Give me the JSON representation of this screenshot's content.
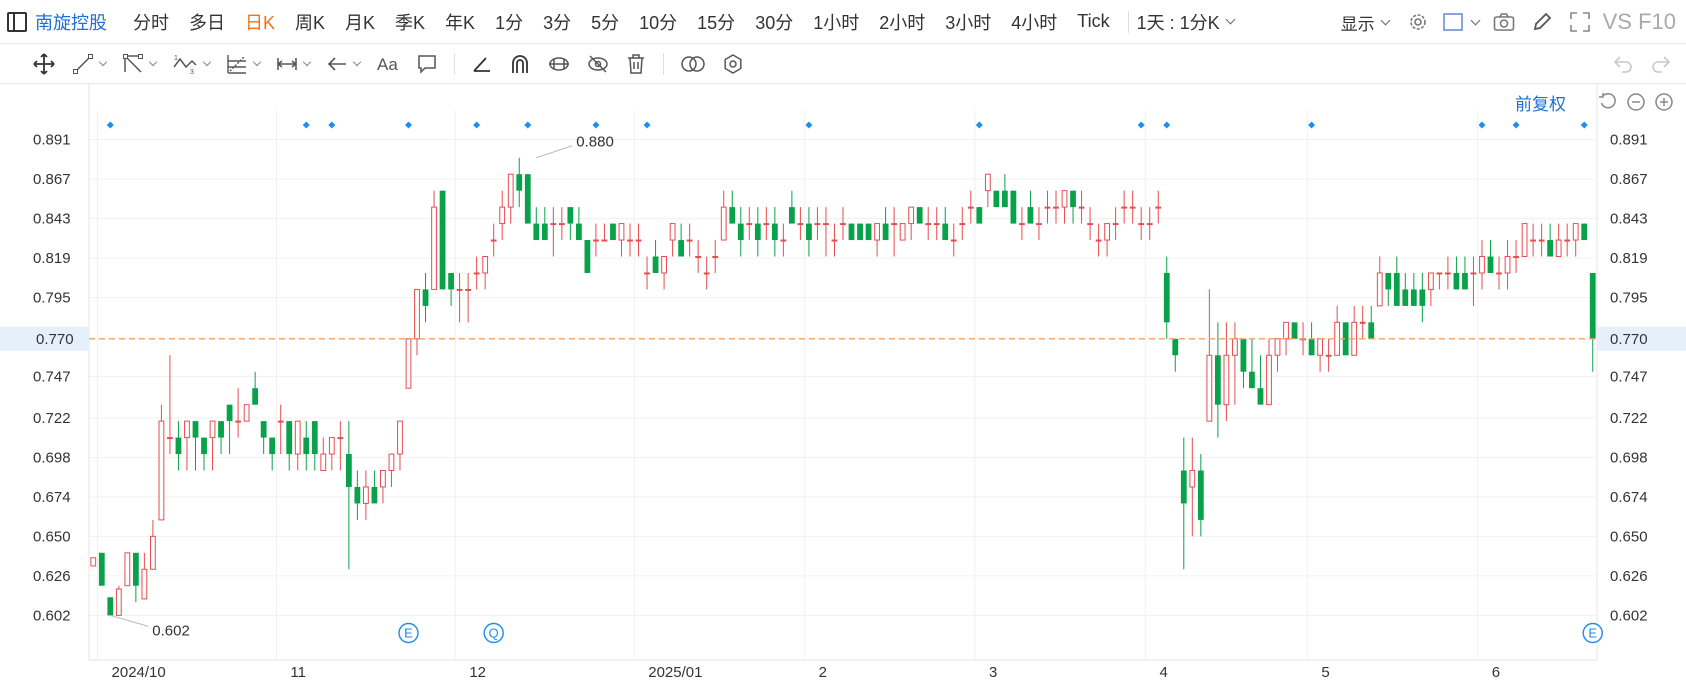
{
  "toolbar": {
    "stock_name": "南旋控股",
    "periods": [
      "分时",
      "多日",
      "日K",
      "周K",
      "月K",
      "季K",
      "年K",
      "1分",
      "3分",
      "5分",
      "10分",
      "15分",
      "30分",
      "1小时",
      "2小时",
      "3小时",
      "4小时",
      "Tick"
    ],
    "active_period": "日K",
    "range_label": "1天 : 1分K",
    "display_label": "显示",
    "brand": "VS F10"
  },
  "chart_header": {
    "adjust_label": "前复权"
  },
  "colors": {
    "up": "#e84c4f",
    "down": "#09a24a",
    "accent": "#1e6fd9",
    "last_price_line": "#f4a35a",
    "active_period": "#f4701a"
  },
  "chart_data": {
    "type": "candlestick",
    "y_ticks": [
      0.891,
      0.867,
      0.843,
      0.819,
      0.795,
      0.77,
      0.747,
      0.722,
      0.698,
      0.674,
      0.65,
      0.626,
      0.602
    ],
    "ylim": [
      0.584,
      0.909
    ],
    "x_labels": [
      "2024/10",
      "11",
      "12",
      "2025/01",
      "2",
      "3",
      "4",
      "5",
      "6"
    ],
    "x_label_index": [
      1,
      22,
      43,
      64,
      84,
      104,
      124,
      143,
      163
    ],
    "last_price": 0.77,
    "annotations": [
      {
        "text": "0.880",
        "index": 52,
        "price": 0.88
      },
      {
        "text": "0.602",
        "index": 2,
        "price": 0.602
      }
    ],
    "event_markers": [
      {
        "label": "E",
        "index": 37
      },
      {
        "label": "Q",
        "index": 47
      },
      {
        "label": "E",
        "index": 176
      }
    ],
    "dividend_marker_index": [
      2,
      25,
      28,
      37,
      45,
      51,
      59,
      65,
      84,
      104,
      123,
      126,
      143,
      163,
      167,
      175
    ],
    "candles": [
      [
        0.632,
        0.637,
        0.633,
        0.637
      ],
      [
        0.64,
        0.64,
        0.62,
        0.62
      ],
      [
        0.613,
        0.613,
        0.602,
        0.602
      ],
      [
        0.602,
        0.62,
        0.602,
        0.618
      ],
      [
        0.62,
        0.64,
        0.62,
        0.64
      ],
      [
        0.64,
        0.64,
        0.61,
        0.62
      ],
      [
        0.612,
        0.64,
        0.612,
        0.63
      ],
      [
        0.63,
        0.66,
        0.63,
        0.65
      ],
      [
        0.66,
        0.73,
        0.66,
        0.72
      ],
      [
        0.71,
        0.76,
        0.7,
        0.71
      ],
      [
        0.71,
        0.72,
        0.69,
        0.7
      ],
      [
        0.71,
        0.72,
        0.69,
        0.72
      ],
      [
        0.72,
        0.72,
        0.69,
        0.71
      ],
      [
        0.71,
        0.71,
        0.69,
        0.7
      ],
      [
        0.71,
        0.72,
        0.69,
        0.72
      ],
      [
        0.72,
        0.72,
        0.7,
        0.71
      ],
      [
        0.73,
        0.73,
        0.7,
        0.72
      ],
      [
        0.72,
        0.74,
        0.71,
        0.72
      ],
      [
        0.72,
        0.73,
        0.72,
        0.73
      ],
      [
        0.74,
        0.75,
        0.73,
        0.73
      ],
      [
        0.72,
        0.72,
        0.7,
        0.71
      ],
      [
        0.71,
        0.71,
        0.69,
        0.7
      ],
      [
        0.72,
        0.73,
        0.7,
        0.72
      ],
      [
        0.72,
        0.72,
        0.69,
        0.7
      ],
      [
        0.7,
        0.72,
        0.69,
        0.72
      ],
      [
        0.71,
        0.72,
        0.69,
        0.7
      ],
      [
        0.72,
        0.72,
        0.69,
        0.7
      ],
      [
        0.69,
        0.71,
        0.69,
        0.7
      ],
      [
        0.7,
        0.71,
        0.69,
        0.71
      ],
      [
        0.71,
        0.72,
        0.69,
        0.71
      ],
      [
        0.7,
        0.72,
        0.63,
        0.68
      ],
      [
        0.68,
        0.69,
        0.66,
        0.67
      ],
      [
        0.67,
        0.69,
        0.66,
        0.68
      ],
      [
        0.68,
        0.69,
        0.67,
        0.67
      ],
      [
        0.68,
        0.69,
        0.67,
        0.69
      ],
      [
        0.69,
        0.7,
        0.68,
        0.7
      ],
      [
        0.7,
        0.72,
        0.69,
        0.72
      ],
      [
        0.74,
        0.77,
        0.74,
        0.77
      ],
      [
        0.77,
        0.8,
        0.76,
        0.8
      ],
      [
        0.8,
        0.81,
        0.78,
        0.79
      ],
      [
        0.8,
        0.86,
        0.8,
        0.85
      ],
      [
        0.86,
        0.86,
        0.8,
        0.8
      ],
      [
        0.81,
        0.81,
        0.79,
        0.8
      ],
      [
        0.8,
        0.81,
        0.78,
        0.8
      ],
      [
        0.8,
        0.81,
        0.78,
        0.8
      ],
      [
        0.81,
        0.82,
        0.8,
        0.81
      ],
      [
        0.81,
        0.82,
        0.8,
        0.82
      ],
      [
        0.83,
        0.84,
        0.82,
        0.83
      ],
      [
        0.84,
        0.86,
        0.83,
        0.85
      ],
      [
        0.85,
        0.87,
        0.84,
        0.87
      ],
      [
        0.87,
        0.88,
        0.85,
        0.86
      ],
      [
        0.87,
        0.87,
        0.84,
        0.84
      ],
      [
        0.84,
        0.85,
        0.83,
        0.83
      ],
      [
        0.84,
        0.85,
        0.83,
        0.83
      ],
      [
        0.84,
        0.85,
        0.82,
        0.84
      ],
      [
        0.84,
        0.85,
        0.83,
        0.84
      ],
      [
        0.85,
        0.85,
        0.83,
        0.84
      ],
      [
        0.84,
        0.85,
        0.83,
        0.83
      ],
      [
        0.83,
        0.83,
        0.81,
        0.81
      ],
      [
        0.83,
        0.84,
        0.82,
        0.83
      ],
      [
        0.83,
        0.84,
        0.83,
        0.83
      ],
      [
        0.84,
        0.84,
        0.83,
        0.83
      ],
      [
        0.83,
        0.84,
        0.82,
        0.84
      ],
      [
        0.83,
        0.84,
        0.82,
        0.83
      ],
      [
        0.83,
        0.84,
        0.82,
        0.83
      ],
      [
        0.81,
        0.82,
        0.8,
        0.81
      ],
      [
        0.82,
        0.83,
        0.81,
        0.81
      ],
      [
        0.81,
        0.82,
        0.8,
        0.82
      ],
      [
        0.83,
        0.84,
        0.82,
        0.84
      ],
      [
        0.83,
        0.84,
        0.82,
        0.82
      ],
      [
        0.83,
        0.84,
        0.82,
        0.83
      ],
      [
        0.82,
        0.83,
        0.81,
        0.82
      ],
      [
        0.81,
        0.82,
        0.8,
        0.81
      ],
      [
        0.82,
        0.83,
        0.81,
        0.82
      ],
      [
        0.83,
        0.86,
        0.83,
        0.85
      ],
      [
        0.85,
        0.86,
        0.84,
        0.84
      ],
      [
        0.84,
        0.85,
        0.82,
        0.83
      ],
      [
        0.84,
        0.85,
        0.83,
        0.84
      ],
      [
        0.84,
        0.85,
        0.82,
        0.83
      ],
      [
        0.84,
        0.85,
        0.83,
        0.84
      ],
      [
        0.84,
        0.85,
        0.82,
        0.83
      ],
      [
        0.83,
        0.84,
        0.82,
        0.83
      ],
      [
        0.85,
        0.86,
        0.84,
        0.84
      ],
      [
        0.84,
        0.85,
        0.83,
        0.84
      ],
      [
        0.84,
        0.85,
        0.82,
        0.83
      ],
      [
        0.84,
        0.85,
        0.83,
        0.84
      ],
      [
        0.84,
        0.85,
        0.82,
        0.84
      ],
      [
        0.83,
        0.84,
        0.82,
        0.83
      ],
      [
        0.84,
        0.85,
        0.83,
        0.84
      ],
      [
        0.84,
        0.84,
        0.83,
        0.83
      ],
      [
        0.84,
        0.84,
        0.83,
        0.83
      ],
      [
        0.84,
        0.84,
        0.83,
        0.83
      ],
      [
        0.83,
        0.84,
        0.82,
        0.84
      ],
      [
        0.84,
        0.85,
        0.83,
        0.83
      ],
      [
        0.84,
        0.85,
        0.82,
        0.84
      ],
      [
        0.83,
        0.84,
        0.83,
        0.84
      ],
      [
        0.84,
        0.85,
        0.83,
        0.85
      ],
      [
        0.85,
        0.85,
        0.84,
        0.84
      ],
      [
        0.84,
        0.85,
        0.83,
        0.84
      ],
      [
        0.84,
        0.85,
        0.83,
        0.84
      ],
      [
        0.84,
        0.85,
        0.83,
        0.83
      ],
      [
        0.83,
        0.84,
        0.82,
        0.83
      ],
      [
        0.84,
        0.85,
        0.83,
        0.84
      ],
      [
        0.85,
        0.86,
        0.84,
        0.85
      ],
      [
        0.85,
        0.85,
        0.84,
        0.84
      ],
      [
        0.86,
        0.87,
        0.85,
        0.87
      ],
      [
        0.86,
        0.86,
        0.85,
        0.85
      ],
      [
        0.86,
        0.87,
        0.85,
        0.85
      ],
      [
        0.86,
        0.86,
        0.84,
        0.84
      ],
      [
        0.84,
        0.85,
        0.83,
        0.84
      ],
      [
        0.85,
        0.86,
        0.84,
        0.84
      ],
      [
        0.84,
        0.85,
        0.83,
        0.84
      ],
      [
        0.85,
        0.86,
        0.84,
        0.85
      ],
      [
        0.85,
        0.86,
        0.84,
        0.85
      ],
      [
        0.85,
        0.86,
        0.84,
        0.86
      ],
      [
        0.86,
        0.86,
        0.84,
        0.85
      ],
      [
        0.85,
        0.86,
        0.84,
        0.85
      ],
      [
        0.84,
        0.85,
        0.83,
        0.84
      ],
      [
        0.83,
        0.84,
        0.82,
        0.83
      ],
      [
        0.83,
        0.84,
        0.82,
        0.84
      ],
      [
        0.84,
        0.85,
        0.83,
        0.84
      ],
      [
        0.85,
        0.86,
        0.84,
        0.85
      ],
      [
        0.85,
        0.86,
        0.84,
        0.85
      ],
      [
        0.84,
        0.85,
        0.83,
        0.84
      ],
      [
        0.84,
        0.85,
        0.83,
        0.84
      ],
      [
        0.85,
        0.86,
        0.84,
        0.85
      ],
      [
        0.81,
        0.82,
        0.77,
        0.78
      ],
      [
        0.77,
        0.77,
        0.75,
        0.76
      ],
      [
        0.69,
        0.71,
        0.63,
        0.67
      ],
      [
        0.68,
        0.71,
        0.65,
        0.69
      ],
      [
        0.69,
        0.7,
        0.65,
        0.66
      ],
      [
        0.72,
        0.8,
        0.72,
        0.76
      ],
      [
        0.76,
        0.78,
        0.71,
        0.73
      ],
      [
        0.73,
        0.78,
        0.72,
        0.76
      ],
      [
        0.76,
        0.78,
        0.73,
        0.77
      ],
      [
        0.77,
        0.77,
        0.74,
        0.75
      ],
      [
        0.75,
        0.77,
        0.74,
        0.74
      ],
      [
        0.74,
        0.76,
        0.73,
        0.73
      ],
      [
        0.73,
        0.77,
        0.73,
        0.76
      ],
      [
        0.76,
        0.77,
        0.75,
        0.77
      ],
      [
        0.77,
        0.78,
        0.76,
        0.78
      ],
      [
        0.78,
        0.78,
        0.77,
        0.77
      ],
      [
        0.77,
        0.78,
        0.76,
        0.77
      ],
      [
        0.77,
        0.78,
        0.76,
        0.76
      ],
      [
        0.76,
        0.77,
        0.75,
        0.77
      ],
      [
        0.76,
        0.77,
        0.75,
        0.76
      ],
      [
        0.76,
        0.79,
        0.76,
        0.78
      ],
      [
        0.78,
        0.78,
        0.76,
        0.76
      ],
      [
        0.76,
        0.79,
        0.76,
        0.78
      ],
      [
        0.78,
        0.79,
        0.77,
        0.78
      ],
      [
        0.78,
        0.79,
        0.77,
        0.77
      ],
      [
        0.79,
        0.82,
        0.79,
        0.81
      ],
      [
        0.81,
        0.81,
        0.79,
        0.8
      ],
      [
        0.81,
        0.82,
        0.79,
        0.79
      ],
      [
        0.8,
        0.81,
        0.79,
        0.79
      ],
      [
        0.8,
        0.81,
        0.79,
        0.79
      ],
      [
        0.8,
        0.81,
        0.78,
        0.79
      ],
      [
        0.8,
        0.81,
        0.79,
        0.81
      ],
      [
        0.81,
        0.81,
        0.8,
        0.81
      ],
      [
        0.81,
        0.82,
        0.8,
        0.81
      ],
      [
        0.81,
        0.82,
        0.8,
        0.8
      ],
      [
        0.81,
        0.82,
        0.8,
        0.8
      ],
      [
        0.81,
        0.82,
        0.79,
        0.81
      ],
      [
        0.81,
        0.83,
        0.8,
        0.82
      ],
      [
        0.82,
        0.83,
        0.81,
        0.81
      ],
      [
        0.81,
        0.82,
        0.8,
        0.81
      ],
      [
        0.81,
        0.83,
        0.8,
        0.82
      ],
      [
        0.82,
        0.83,
        0.81,
        0.82
      ],
      [
        0.82,
        0.84,
        0.82,
        0.84
      ],
      [
        0.83,
        0.84,
        0.82,
        0.83
      ],
      [
        0.83,
        0.84,
        0.82,
        0.83
      ],
      [
        0.83,
        0.84,
        0.82,
        0.82
      ],
      [
        0.82,
        0.84,
        0.82,
        0.83
      ],
      [
        0.83,
        0.84,
        0.82,
        0.83
      ],
      [
        0.83,
        0.84,
        0.82,
        0.84
      ],
      [
        0.84,
        0.84,
        0.83,
        0.83
      ],
      [
        0.81,
        0.81,
        0.75,
        0.77
      ]
    ]
  }
}
